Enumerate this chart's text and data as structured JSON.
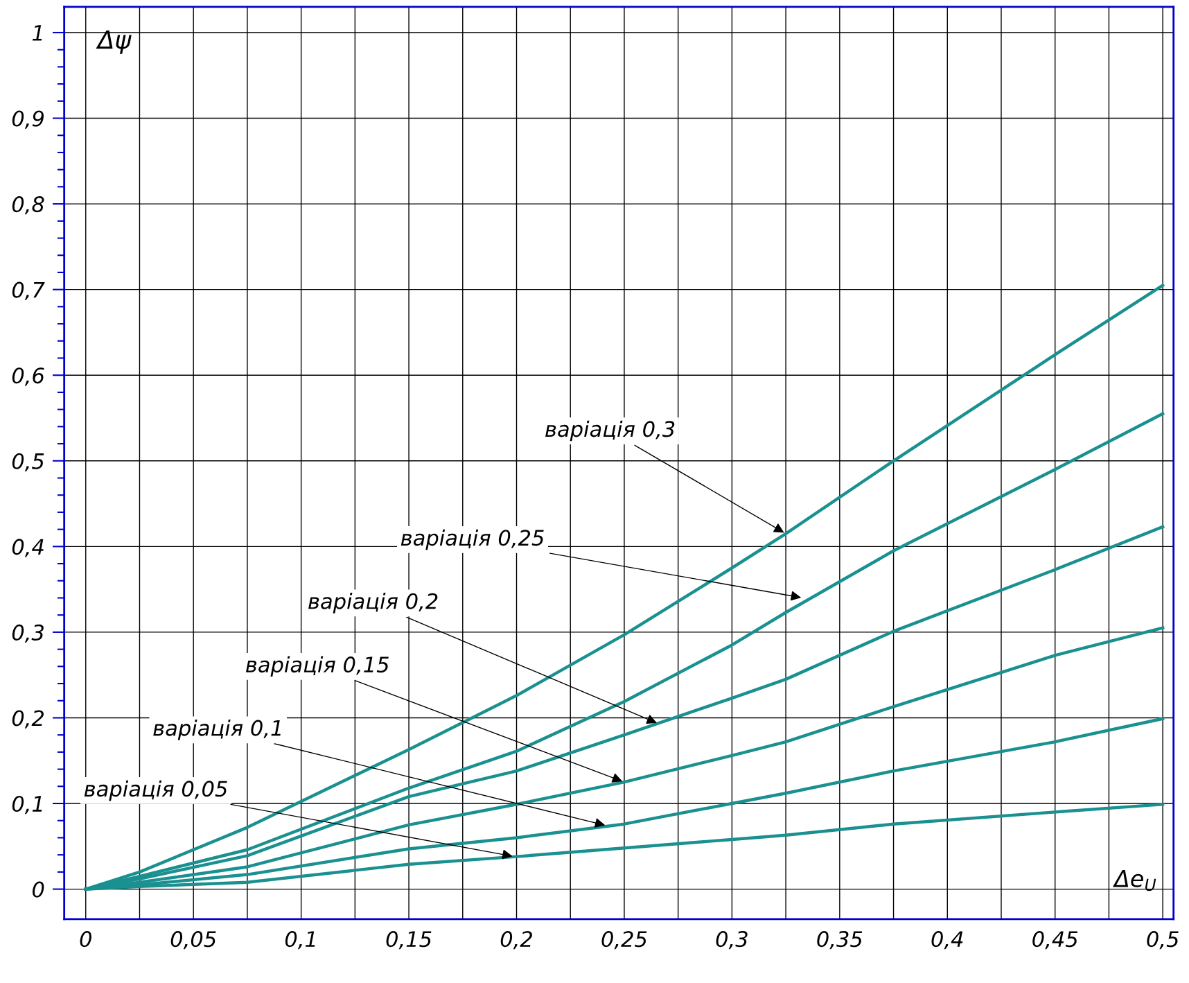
{
  "chart_data": {
    "type": "line",
    "xlabel": "Δe$_{U}$",
    "ylabel": "Δψ",
    "x": [
      0,
      0.025,
      0.075,
      0.15,
      0.2,
      0.25,
      0.3,
      0.325,
      0.375,
      0.45,
      0.5
    ],
    "series": [
      {
        "color": "#1a9090",
        "values": [
          0,
          0.02,
          0.072,
          0.163,
          0.226,
          0.297,
          0.375,
          0.415,
          0.5,
          0.624,
          0.705
        ]
      },
      {
        "color": "#1a9090",
        "values": [
          0,
          0.015,
          0.046,
          0.118,
          0.161,
          0.219,
          0.285,
          0.323,
          0.395,
          0.49,
          0.555
        ]
      },
      {
        "color": "#1a9090",
        "values": [
          0,
          0.012,
          0.039,
          0.108,
          0.138,
          0.18,
          0.223,
          0.245,
          0.301,
          0.373,
          0.423
        ]
      },
      {
        "color": "#1a9090",
        "values": [
          0,
          0.008,
          0.026,
          0.075,
          0.099,
          0.125,
          0.156,
          0.172,
          0.213,
          0.273,
          0.305
        ]
      },
      {
        "color": "#1a9090",
        "values": [
          0,
          0.005,
          0.017,
          0.047,
          0.06,
          0.076,
          0.1,
          0.112,
          0.138,
          0.172,
          0.199
        ]
      },
      {
        "color": "#1a9090",
        "values": [
          0,
          0.003,
          0.008,
          0.029,
          0.038,
          0.048,
          0.058,
          0.063,
          0.076,
          0.09,
          0.099
        ]
      }
    ],
    "annotations": [
      {
        "text": "варіація 0,3",
        "x": 0.325,
        "y": 0.415
      },
      {
        "text": "варіація 0,25",
        "x": 0.333,
        "y": 0.34
      },
      {
        "text": "варіація 0,2",
        "x": 0.266,
        "y": 0.193
      },
      {
        "text": "варіація 0,15",
        "x": 0.25,
        "y": 0.125
      },
      {
        "text": "варіація 0,1",
        "x": 0.242,
        "y": 0.074
      },
      {
        "text": "варіація 0,05",
        "x": 0.199,
        "y": 0.038
      }
    ],
    "xlim": [
      -0.01,
      0.505
    ],
    "ylim": [
      -0.035,
      1.03
    ],
    "xticks": [
      0,
      {
        "value": 0.025,
        "label": null
      },
      {
        "value": 0.05,
        "label": "0,05"
      },
      {
        "value": 0.075,
        "label": null
      },
      {
        "value": 0.1,
        "label": "0,1"
      },
      {
        "value": 0.125,
        "label": null
      },
      {
        "value": 0.15,
        "label": "0,15"
      },
      {
        "value": 0.175,
        "label": null
      },
      {
        "value": 0.2,
        "label": "0,2"
      },
      {
        "value": 0.225,
        "label": null
      },
      {
        "value": 0.25,
        "label": "0,25"
      },
      {
        "value": 0.275,
        "label": null
      },
      {
        "value": 0.3,
        "label": "0,3"
      },
      {
        "value": 0.325,
        "label": null
      },
      {
        "value": 0.35,
        "label": "0,35"
      },
      {
        "value": 0.375,
        "label": null
      },
      {
        "value": 0.4,
        "label": "0,4"
      },
      {
        "value": 0.425,
        "label": null
      },
      {
        "value": 0.45,
        "label": "0,45"
      },
      {
        "value": 0.475,
        "label": null
      },
      {
        "value": 0.5,
        "label": "0,5"
      }
    ],
    "yticks": [
      0,
      {
        "value": 0.02,
        "label": null
      },
      {
        "value": 0.04,
        "label": null
      },
      {
        "value": 0.06,
        "label": null
      },
      {
        "value": 0.08,
        "label": null
      },
      {
        "value": 0.1,
        "label": "0,1"
      },
      {
        "value": 0.12,
        "label": null
      },
      {
        "value": 0.14,
        "label": null
      },
      {
        "value": 0.16,
        "label": null
      },
      {
        "value": 0.18,
        "label": null
      },
      {
        "value": 0.2,
        "label": "0,2"
      },
      {
        "value": 0.22,
        "label": null
      },
      {
        "value": 0.24,
        "label": null
      },
      {
        "value": 0.26,
        "label": null
      },
      {
        "value": 0.28,
        "label": null
      },
      {
        "value": 0.3,
        "label": "0,3"
      },
      {
        "value": 0.32,
        "label": null
      },
      {
        "value": 0.34,
        "label": null
      },
      {
        "value": 0.36,
        "label": null
      },
      {
        "value": 0.38,
        "label": null
      },
      {
        "value": 0.4,
        "label": "0,4"
      },
      {
        "value": 0.42,
        "label": null
      },
      {
        "value": 0.44,
        "label": null
      },
      {
        "value": 0.46,
        "label": null
      },
      {
        "value": 0.48,
        "label": null
      },
      {
        "value": 0.5,
        "label": "0,5"
      },
      {
        "value": 0.52,
        "label": null
      },
      {
        "value": 0.54,
        "label": null
      },
      {
        "value": 0.56,
        "label": null
      },
      {
        "value": 0.58,
        "label": null
      },
      {
        "value": 0.6,
        "label": "0,6"
      },
      {
        "value": 0.62,
        "label": null
      },
      {
        "value": 0.64,
        "label": null
      },
      {
        "value": 0.66,
        "label": null
      },
      {
        "value": 0.68,
        "label": null
      },
      {
        "value": 0.7,
        "label": "0,7"
      },
      {
        "value": 0.72,
        "label": null
      },
      {
        "value": 0.74,
        "label": null
      },
      {
        "value": 0.76,
        "label": null
      },
      {
        "value": 0.78,
        "label": null
      },
      {
        "value": 0.8,
        "label": "0,8"
      },
      {
        "value": 0.82,
        "label": null
      },
      {
        "value": 0.84,
        "label": null
      },
      {
        "value": 0.86,
        "label": null
      },
      {
        "value": 0.88,
        "label": null
      },
      {
        "value": 0.9,
        "label": "0,9"
      },
      {
        "value": 0.92,
        "label": null
      },
      {
        "value": 0.94,
        "label": null
      },
      {
        "value": 0.96,
        "label": null
      },
      {
        "value": 0.98,
        "label": null
      },
      1
    ],
    "grid": true,
    "marker": "none",
    "line_style": "solid"
  }
}
